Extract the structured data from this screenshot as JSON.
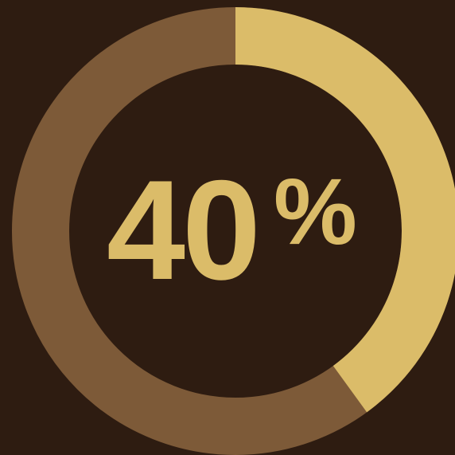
{
  "chart_data": {
    "type": "pie",
    "variant": "donut",
    "value_percent": 40,
    "label": {
      "number": "40",
      "unit": "%"
    },
    "slices": [
      {
        "value": 40,
        "color": "#dbbc69"
      },
      {
        "value": 60,
        "color": "#7d5a38"
      }
    ],
    "background_color": "#2e1c11"
  }
}
